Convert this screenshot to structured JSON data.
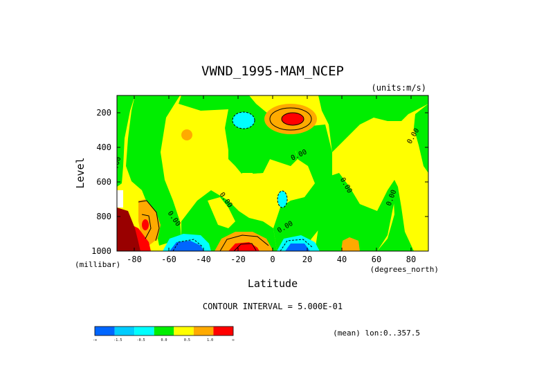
{
  "chart_data": {
    "type": "heatmap",
    "subtype": "filled-contour",
    "title": "VWND_1995-MAM_NCEP",
    "units_label": "(units:m/s)",
    "xlabel": "Latitude",
    "x_units_label": "(degrees_north)",
    "ylabel": "Level",
    "y_units_label": "(millibar)",
    "xlim": [
      -90,
      90
    ],
    "ylim": [
      1000,
      100
    ],
    "x_ticks": [
      -80,
      -60,
      -40,
      -20,
      0,
      20,
      40,
      60,
      80
    ],
    "x_tick_labels": [
      "-80",
      "-60",
      "-40",
      "-20",
      "0",
      "20",
      "40",
      "60",
      "80"
    ],
    "y_ticks": [
      200,
      400,
      600,
      800,
      1000
    ],
    "y_tick_labels": [
      "200",
      "400",
      "600",
      "800",
      "1000"
    ],
    "contour_interval_text": "CONTOUR INTERVAL = 5.000E-01",
    "mean_text": "(mean) lon:0..357.5",
    "contour_labels": [
      "0.00",
      "0.00",
      "0.00",
      "0.00",
      "0.00",
      "0.00",
      "0.00",
      "0.00"
    ],
    "colorbar": {
      "colors": [
        "#0066ff",
        "#00ccff",
        "#00ffff",
        "#00ee00",
        "#ffff00",
        "#ffaa00",
        "#ff0000"
      ],
      "tick_labels": [
        "-∞",
        "-1.5",
        "-0.5",
        "0.0",
        "0.5",
        "1.0",
        "∞"
      ]
    },
    "background_color": "#ffff00",
    "features": [
      {
        "type": "green-band",
        "lat": -85,
        "p": 180,
        "rx": 6,
        "rp": 100,
        "color": "#00ee00"
      }
    ]
  }
}
